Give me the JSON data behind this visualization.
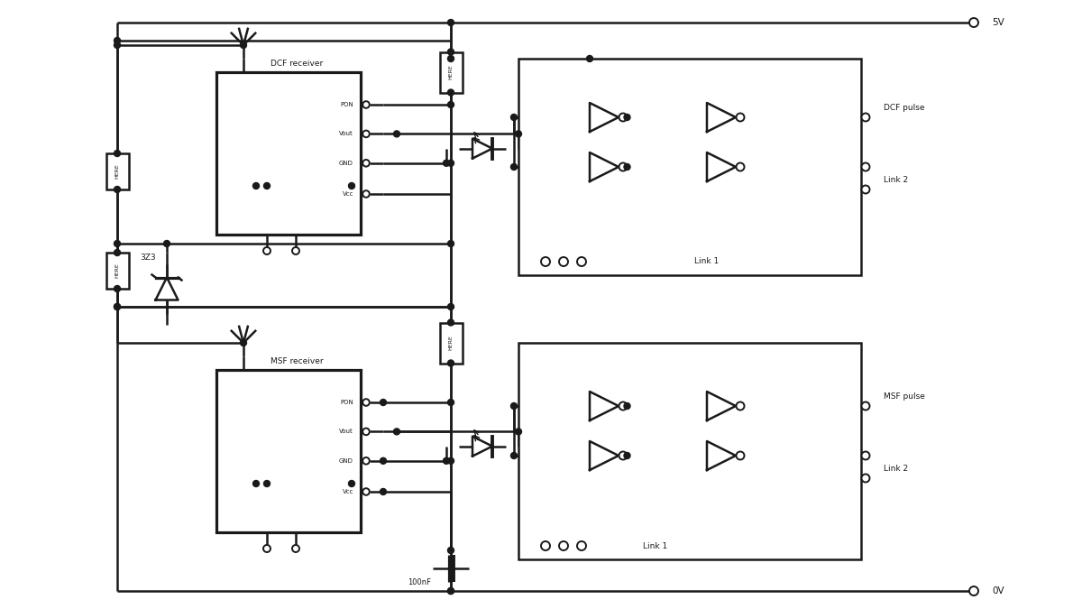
{
  "line_color": "#1a1a1a",
  "lw": 1.8,
  "5V_label": "5V",
  "0V_label": "0V",
  "dcf_label": "DCF pulse",
  "msf_label": "MSF pulse",
  "link1_label": "Link 1",
  "link2_label": "Link 2",
  "dcf_receiver_label": "DCF receiver",
  "msf_receiver_label": "MSF receiver",
  "resistor_label": "HERE",
  "cap_label": "100nF",
  "zener_label": "3Z3",
  "pin_labels": [
    "PON",
    "Vout",
    "GND",
    "Vcc"
  ],
  "figsize": [
    12.0,
    6.75
  ],
  "dpi": 100,
  "xlim": [
    0,
    120
  ],
  "ylim": [
    0,
    67.5
  ]
}
